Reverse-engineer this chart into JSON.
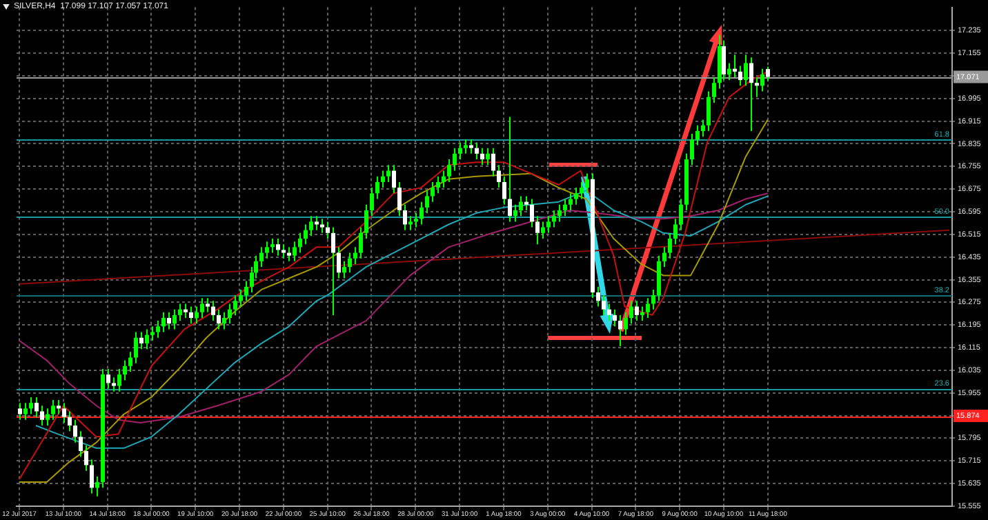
{
  "chart_data": {
    "type": "candlestick",
    "title": "SILVER,H4  17.099 17.107 17.057 17.071",
    "color": "#00ff00",
    "colors": [
      "#ffffff",
      "#00ff00",
      "#00ff00",
      "#ffffff",
      "#ffffff",
      "#00ff00",
      "#00ff00",
      "#ffffff",
      "#ffffff",
      "#ffffff",
      "#ffffff",
      "#ffffff",
      "#ffffff",
      "#ffffff",
      "#00ff00",
      "#00ff00",
      "#ffffff",
      "#ffffff",
      "#00ff00",
      "#00ff00",
      "#00ff00",
      "#00ff00",
      "#ffffff",
      "#00ff00",
      "#00ff00",
      "#00ff00",
      "#00ff00",
      "#ffffff",
      "#00ff00",
      "#00ff00",
      "#ffffff",
      "#ffffff",
      "#00ff00",
      "#00ff00",
      "#ffffff",
      "#ffffff",
      "#ffffff",
      "#00ff00",
      "#00ff00",
      "#00ff00",
      "#00ff00",
      "#00ff00",
      "#00ff00",
      "#00ff00",
      "#00ff00",
      "#00ff00",
      "#00ff00",
      "#ffffff",
      "#ffffff",
      "#ffffff",
      "#00ff00",
      "#00ff00",
      "#00ff00",
      "#00ff00",
      "#ffffff",
      "#ffffff",
      "#ffffff",
      "#ffffff",
      "#ffffff",
      "#00ff00",
      "#00ff00",
      "#00ff00",
      "#00ff00",
      "#00ff00",
      "#00ff00",
      "#00ff00",
      "#00ff00",
      "#00ff00",
      "#ffffff",
      "#ffffff",
      "#ffffff",
      "#00ff00",
      "#00ff00",
      "#00ff00",
      "#00ff00",
      "#00ff00",
      "#00ff00",
      "#00ff00",
      "#00ff00",
      "#00ff00",
      "#00ff00",
      "#00ff00",
      "#ffffff",
      "#ffffff",
      "#ffffff",
      "#00ff00",
      "#ffffff",
      "#ffffff",
      "#ffffff",
      "#ffffff",
      "#00ff00",
      "#00ff00",
      "#ffffff",
      "#ffffff",
      "#ffffff",
      "#00ff00",
      "#00ff00",
      "#00ff00",
      "#00ff00",
      "#00ff00",
      "#00ff00",
      "#00ff00",
      "#00ff00",
      "#00ff00",
      "#ffffff",
      "#ffffff",
      "#ffffff",
      "#ffffff",
      "#ffffff",
      "#ffffff",
      "#00ff00",
      "#00ff00",
      "#ffffff",
      "#00ff00",
      "#00ff00",
      "#00ff00",
      "#00ff00",
      "#00ff00",
      "#00ff00",
      "#00ff00",
      "#00ff00",
      "#00ff00",
      "#00ff00",
      "#00ff00",
      "#00ff00",
      "#00ff00",
      "#00ff00",
      "#00ff00",
      "#ffffff",
      "#00ff00",
      "#ffffff",
      "#ffffff",
      "#00ff00",
      "#ffffff",
      "#ffffff",
      "#00ff00",
      "#ffffff",
      null,
      null,
      null,
      null,
      null,
      null,
      null,
      null,
      null,
      null,
      null,
      null,
      null,
      null,
      null,
      null,
      null,
      null,
      null,
      null,
      null,
      null,
      null,
      null,
      null,
      null,
      null,
      null,
      null,
      null,
      null,
      null,
      null
    ],
    "categories": [
      "12 Jul 2017",
      null,
      null,
      null,
      null,
      null,
      null,
      null,
      "13 Jul 10:00",
      null,
      null,
      null,
      null,
      null,
      null,
      null,
      "14 Jul 18:00",
      null,
      null,
      null,
      null,
      null,
      null,
      null,
      "18 Jul 00:00",
      null,
      null,
      null,
      null,
      null,
      null,
      null,
      "19 Jul 10:00",
      null,
      null,
      null,
      null,
      null,
      null,
      null,
      "20 Jul 18:00",
      null,
      null,
      null,
      null,
      null,
      null,
      null,
      "22 Jul 00:00",
      null,
      null,
      null,
      null,
      null,
      null,
      null,
      "25 Jul 10:00",
      null,
      null,
      null,
      null,
      null,
      null,
      null,
      "26 Jul 18:00",
      null,
      null,
      null,
      null,
      null,
      null,
      null,
      "28 Jul 00:00",
      null,
      null,
      null,
      null,
      null,
      null,
      null,
      "31 Jul 10:00",
      null,
      null,
      null,
      null,
      null,
      null,
      null,
      "1 Aug 18:00",
      null,
      null,
      null,
      null,
      null,
      null,
      null,
      "3 Aug 00:00",
      null,
      null,
      null,
      null,
      null,
      null,
      null,
      "4 Aug 10:00",
      null,
      null,
      null,
      null,
      null,
      null,
      null,
      "7 Aug 18:00",
      null,
      null,
      null,
      null,
      null,
      null,
      null,
      "9 Aug 00:00",
      null,
      null,
      null,
      null,
      null,
      null,
      null,
      "10 Aug 10:00",
      null,
      null,
      null,
      null,
      null,
      null,
      null,
      "11 Aug 18:00",
      null,
      null,
      null,
      null,
      null,
      null,
      null,
      null,
      null,
      null,
      null,
      null,
      null,
      null,
      null,
      null,
      null,
      null,
      null,
      null,
      null,
      null,
      null,
      null,
      null,
      null,
      null,
      null,
      null,
      null,
      null,
      null,
      null
    ],
    "ohlc": [
      [
        15.9,
        15.92,
        15.86,
        15.88
      ],
      [
        15.88,
        15.92,
        15.86,
        15.9
      ],
      [
        15.9,
        15.94,
        15.88,
        15.92
      ],
      [
        15.92,
        15.94,
        15.87,
        15.89
      ],
      [
        15.89,
        15.91,
        15.84,
        15.86
      ],
      [
        15.86,
        15.9,
        15.84,
        15.88
      ],
      [
        15.88,
        15.93,
        15.86,
        15.91
      ],
      [
        15.91,
        15.93,
        15.88,
        15.9
      ],
      [
        15.9,
        15.92,
        15.85,
        15.87
      ],
      [
        15.87,
        15.89,
        15.82,
        15.84
      ],
      [
        15.84,
        15.86,
        15.78,
        15.8
      ],
      [
        15.8,
        15.82,
        15.73,
        15.75
      ],
      [
        15.75,
        15.77,
        15.68,
        15.7
      ],
      [
        15.7,
        15.72,
        15.6,
        15.62
      ],
      [
        15.62,
        15.66,
        15.59,
        15.64
      ],
      [
        15.64,
        16.04,
        15.62,
        16.02
      ],
      [
        16.02,
        16.04,
        15.97,
        15.99
      ],
      [
        15.99,
        16.01,
        15.96,
        15.98
      ],
      [
        15.98,
        16.04,
        15.96,
        16.02
      ],
      [
        16.02,
        16.07,
        16.0,
        16.05
      ],
      [
        16.05,
        16.1,
        16.03,
        16.08
      ],
      [
        16.08,
        16.17,
        16.06,
        16.15
      ],
      [
        16.15,
        16.17,
        16.11,
        16.13
      ],
      [
        16.13,
        16.18,
        16.11,
        16.16
      ],
      [
        16.16,
        16.19,
        16.14,
        16.17
      ],
      [
        16.17,
        16.21,
        16.15,
        16.19
      ],
      [
        16.19,
        16.24,
        16.17,
        16.22
      ],
      [
        16.22,
        16.24,
        16.18,
        16.2
      ],
      [
        16.2,
        16.25,
        16.18,
        16.23
      ],
      [
        16.23,
        16.27,
        16.21,
        16.25
      ],
      [
        16.25,
        16.27,
        16.22,
        16.24
      ],
      [
        16.24,
        16.26,
        16.2,
        16.22
      ],
      [
        16.22,
        16.26,
        16.2,
        16.24
      ],
      [
        16.24,
        16.29,
        16.22,
        16.27
      ],
      [
        16.27,
        16.29,
        16.24,
        16.26
      ],
      [
        16.26,
        16.28,
        16.21,
        16.23
      ],
      [
        16.23,
        16.25,
        16.18,
        16.2
      ],
      [
        16.2,
        16.24,
        16.18,
        16.22
      ],
      [
        16.22,
        16.27,
        16.2,
        16.25
      ],
      [
        16.25,
        16.3,
        16.23,
        16.28
      ],
      [
        16.28,
        16.32,
        16.26,
        16.3
      ],
      [
        16.3,
        16.35,
        16.28,
        16.33
      ],
      [
        16.33,
        16.4,
        16.31,
        16.38
      ],
      [
        16.38,
        16.44,
        16.36,
        16.42
      ],
      [
        16.42,
        16.47,
        16.4,
        16.45
      ],
      [
        16.45,
        16.49,
        16.43,
        16.47
      ],
      [
        16.47,
        16.5,
        16.45,
        16.48
      ],
      [
        16.48,
        16.5,
        16.44,
        16.46
      ],
      [
        16.46,
        16.48,
        16.43,
        16.45
      ],
      [
        16.45,
        16.47,
        16.42,
        16.44
      ],
      [
        16.44,
        16.49,
        16.42,
        16.47
      ],
      [
        16.47,
        16.52,
        16.45,
        16.5
      ],
      [
        16.5,
        16.55,
        16.48,
        16.53
      ],
      [
        16.53,
        16.58,
        16.51,
        16.56
      ],
      [
        16.56,
        16.58,
        16.53,
        16.55
      ],
      [
        16.55,
        16.57,
        16.52,
        16.54
      ],
      [
        16.54,
        16.56,
        16.5,
        16.52
      ],
      [
        16.52,
        16.54,
        16.23,
        16.45
      ],
      [
        16.45,
        16.47,
        16.36,
        16.38
      ],
      [
        16.38,
        16.42,
        16.36,
        16.4
      ],
      [
        16.4,
        16.45,
        16.38,
        16.43
      ],
      [
        16.43,
        16.47,
        16.41,
        16.45
      ],
      [
        16.45,
        16.54,
        16.43,
        16.52
      ],
      [
        16.52,
        16.62,
        16.5,
        16.6
      ],
      [
        16.6,
        16.68,
        16.58,
        16.66
      ],
      [
        16.66,
        16.72,
        16.64,
        16.7
      ],
      [
        16.7,
        16.74,
        16.68,
        16.72
      ],
      [
        16.72,
        16.76,
        16.7,
        16.74
      ],
      [
        16.74,
        16.76,
        16.66,
        16.68
      ],
      [
        16.68,
        16.7,
        16.58,
        16.6
      ],
      [
        16.6,
        16.62,
        16.53,
        16.55
      ],
      [
        16.55,
        16.58,
        16.53,
        16.56
      ],
      [
        16.56,
        16.59,
        16.54,
        16.57
      ],
      [
        16.57,
        16.63,
        16.55,
        16.61
      ],
      [
        16.61,
        16.67,
        16.59,
        16.65
      ],
      [
        16.65,
        16.7,
        16.63,
        16.68
      ],
      [
        16.68,
        16.72,
        16.66,
        16.7
      ],
      [
        16.7,
        16.74,
        16.68,
        16.72
      ],
      [
        16.72,
        16.78,
        16.7,
        16.76
      ],
      [
        16.76,
        16.82,
        16.74,
        16.8
      ],
      [
        16.8,
        16.84,
        16.78,
        16.82
      ],
      [
        16.82,
        16.85,
        16.8,
        16.83
      ],
      [
        16.83,
        16.85,
        16.8,
        16.82
      ],
      [
        16.82,
        16.84,
        16.78,
        16.8
      ],
      [
        16.8,
        16.82,
        16.76,
        16.78
      ],
      [
        16.78,
        16.82,
        16.76,
        16.8
      ],
      [
        16.8,
        16.82,
        16.72,
        16.74
      ],
      [
        16.74,
        16.76,
        16.68,
        16.7
      ],
      [
        16.7,
        16.72,
        16.62,
        16.64
      ],
      [
        16.64,
        16.93,
        16.56,
        16.58
      ],
      [
        16.58,
        16.62,
        16.56,
        16.6
      ],
      [
        16.6,
        16.65,
        16.58,
        16.63
      ],
      [
        16.63,
        16.65,
        16.6,
        16.62
      ],
      [
        16.62,
        16.64,
        16.54,
        16.56
      ],
      [
        16.56,
        16.58,
        16.48,
        16.52
      ],
      [
        16.52,
        16.56,
        16.5,
        16.54
      ],
      [
        16.54,
        16.58,
        16.52,
        16.56
      ],
      [
        16.56,
        16.6,
        16.54,
        16.58
      ],
      [
        16.58,
        16.62,
        16.56,
        16.6
      ],
      [
        16.6,
        16.64,
        16.58,
        16.62
      ],
      [
        16.62,
        16.66,
        16.6,
        16.64
      ],
      [
        16.64,
        16.68,
        16.62,
        16.66
      ],
      [
        16.66,
        16.7,
        16.64,
        16.68
      ],
      [
        16.68,
        16.73,
        16.66,
        16.71
      ],
      [
        16.71,
        16.73,
        16.29,
        16.31
      ],
      [
        16.31,
        16.33,
        16.26,
        16.28
      ],
      [
        16.28,
        16.3,
        16.23,
        16.25
      ],
      [
        16.25,
        16.27,
        16.21,
        16.23
      ],
      [
        16.23,
        16.25,
        16.19,
        16.21
      ],
      [
        16.21,
        16.23,
        16.12,
        16.18
      ],
      [
        16.18,
        16.24,
        16.16,
        16.22
      ],
      [
        16.22,
        16.28,
        16.2,
        16.26
      ],
      [
        16.26,
        16.28,
        16.21,
        16.23
      ],
      [
        16.23,
        16.26,
        16.21,
        16.24
      ],
      [
        16.24,
        16.29,
        16.22,
        16.27
      ],
      [
        16.27,
        16.32,
        16.25,
        16.3
      ],
      [
        16.3,
        16.44,
        16.28,
        16.42
      ],
      [
        16.42,
        16.47,
        16.4,
        16.45
      ],
      [
        16.45,
        16.52,
        16.43,
        16.5
      ],
      [
        16.5,
        16.57,
        16.48,
        16.55
      ],
      [
        16.55,
        16.64,
        16.53,
        16.62
      ],
      [
        16.62,
        16.8,
        16.6,
        16.78
      ],
      [
        16.78,
        16.87,
        16.76,
        16.85
      ],
      [
        16.85,
        16.9,
        16.83,
        16.88
      ],
      [
        16.88,
        16.92,
        16.86,
        16.9
      ],
      [
        16.9,
        17.02,
        16.88,
        17.0
      ],
      [
        17.0,
        17.07,
        16.98,
        17.05
      ],
      [
        17.05,
        17.22,
        17.03,
        17.18
      ],
      [
        17.18,
        17.2,
        17.06,
        17.08
      ],
      [
        17.08,
        17.12,
        17.06,
        17.1
      ],
      [
        17.1,
        17.15,
        17.07,
        17.09
      ],
      [
        17.09,
        17.11,
        17.04,
        17.06
      ],
      [
        17.06,
        17.15,
        17.04,
        17.12
      ],
      [
        17.12,
        17.14,
        16.88,
        17.05
      ],
      [
        17.05,
        17.07,
        17.0,
        17.04
      ],
      [
        17.04,
        17.1,
        17.02,
        17.08
      ],
      [
        17.099,
        17.107,
        17.057,
        17.071
      ],
      null,
      null,
      null,
      null,
      null,
      null,
      null,
      null,
      null,
      null,
      null,
      null,
      null,
      null,
      null,
      null,
      null,
      null,
      null,
      null,
      null,
      null,
      null,
      null,
      null,
      null,
      null,
      null,
      null,
      null,
      null,
      null,
      null
    ],
    "series": [
      {
        "type": "line",
        "color": "#c81010",
        "values": [
          15.65,
          null,
          null,
          null,
          null,
          null,
          null,
          null,
          15.91,
          null,
          null,
          null,
          null,
          null,
          15.8,
          null,
          null,
          null,
          15.81,
          null,
          null,
          null,
          null,
          null,
          16.05,
          null,
          null,
          null,
          null,
          null,
          16.18,
          null,
          null,
          null,
          null,
          null,
          16.25,
          null,
          null,
          null,
          null,
          16.32,
          null,
          null,
          null,
          null,
          null,
          null,
          null,
          16.4,
          null,
          null,
          null,
          null,
          16.47,
          null,
          null,
          null,
          16.47,
          null,
          null,
          null,
          null,
          16.56,
          null,
          null,
          null,
          null,
          16.66,
          null,
          null,
          null,
          null,
          16.68,
          null,
          null,
          null,
          null,
          16.76,
          null,
          null,
          null,
          null,
          16.77,
          null,
          null,
          null,
          null,
          16.77,
          null,
          null,
          null,
          null,
          16.73,
          null,
          null,
          null,
          null,
          16.69,
          null,
          null,
          null,
          16.74,
          null,
          null,
          null,
          null,
          null,
          16.44,
          null,
          16.26,
          null,
          null,
          null,
          null,
          16.23,
          null,
          16.29,
          null,
          null,
          null,
          16.52,
          null,
          null,
          null,
          16.84,
          null,
          null,
          null,
          17.0,
          null,
          null,
          null,
          17.06,
          null,
          null,
          17.09,
          null,
          null,
          null,
          null,
          null,
          null,
          null,
          null,
          null,
          null,
          null,
          null,
          null,
          null,
          null,
          null,
          null,
          null,
          null,
          null,
          null,
          null,
          null,
          null,
          null,
          null,
          null,
          null,
          null,
          null,
          null,
          null,
          null
        ]
      },
      {
        "type": "line",
        "color": "#a89a00",
        "values": [
          15.64,
          null,
          null,
          null,
          null,
          15.64,
          null,
          null,
          null,
          15.71,
          null,
          null,
          null,
          null,
          15.78,
          null,
          null,
          null,
          null,
          15.88,
          null,
          null,
          null,
          null,
          15.94,
          null,
          null,
          null,
          null,
          16.04,
          null,
          null,
          null,
          null,
          16.15,
          null,
          null,
          null,
          null,
          16.24,
          null,
          null,
          null,
          null,
          16.32,
          null,
          null,
          null,
          null,
          16.36,
          null,
          null,
          null,
          null,
          16.4,
          null,
          null,
          null,
          16.45,
          null,
          null,
          null,
          null,
          16.53,
          null,
          null,
          null,
          null,
          16.6,
          null,
          null,
          null,
          null,
          16.66,
          null,
          null,
          null,
          null,
          16.71,
          null,
          null,
          null,
          null,
          16.72,
          null,
          null,
          null,
          null,
          null,
          null,
          null,
          null,
          null,
          16.73,
          null,
          null,
          null,
          null,
          16.68,
          null,
          null,
          null,
          null,
          16.64,
          null,
          null,
          null,
          null,
          16.5,
          null,
          null,
          null,
          null,
          16.41,
          null,
          null,
          null,
          16.37,
          null,
          null,
          null,
          null,
          16.37,
          null,
          null,
          null,
          null,
          16.55,
          null,
          null,
          null,
          null,
          16.79,
          null,
          null,
          null,
          16.92,
          null,
          null,
          null,
          null,
          null,
          null,
          null,
          null,
          null,
          null,
          null,
          null,
          null,
          null,
          null,
          null,
          null,
          null,
          null,
          null,
          null,
          null,
          null,
          null,
          null,
          null,
          null,
          null,
          null,
          null,
          null,
          null,
          null
        ]
      },
      {
        "type": "line",
        "color": "#1fa8b8",
        "values": [
          null,
          null,
          null,
          15.84,
          null,
          null,
          null,
          15.81,
          null,
          null,
          null,
          null,
          null,
          null,
          15.76,
          null,
          null,
          null,
          null,
          15.76,
          null,
          null,
          null,
          null,
          15.8,
          null,
          null,
          null,
          null,
          15.88,
          null,
          null,
          null,
          null,
          15.97,
          null,
          null,
          null,
          null,
          16.06,
          null,
          null,
          null,
          null,
          16.13,
          null,
          null,
          null,
          null,
          16.19,
          null,
          null,
          null,
          null,
          16.28,
          null,
          16.3,
          null,
          null,
          null,
          null,
          null,
          null,
          16.4,
          null,
          null,
          null,
          null,
          16.45,
          null,
          null,
          null,
          null,
          16.5,
          null,
          null,
          null,
          null,
          16.55,
          null,
          null,
          null,
          null,
          16.59,
          null,
          null,
          null,
          null,
          16.61,
          null,
          null,
          null,
          null,
          16.62,
          null,
          null,
          null,
          null,
          16.63,
          null,
          null,
          null,
          null,
          16.67,
          null,
          null,
          null,
          null,
          16.6,
          null,
          null,
          null,
          null,
          16.56,
          null,
          null,
          null,
          16.52,
          null,
          null,
          null,
          null,
          16.51,
          null,
          null,
          null,
          null,
          16.56,
          null,
          null,
          null,
          null,
          16.62,
          null,
          null,
          null,
          16.65,
          null,
          null,
          null,
          null,
          null,
          null,
          null,
          null,
          null,
          null,
          null,
          null,
          null,
          null,
          null,
          null,
          null,
          null,
          null,
          null,
          null,
          null,
          null,
          null,
          null,
          null,
          null,
          null,
          null,
          null,
          null,
          null,
          null
        ]
      },
      {
        "type": "line",
        "color": "#a0206a",
        "values": [
          16.14,
          null,
          null,
          null,
          null,
          16.07,
          null,
          null,
          null,
          15.99,
          null,
          null,
          null,
          null,
          15.91,
          null,
          null,
          null,
          15.86,
          null,
          null,
          null,
          15.85,
          null,
          null,
          null,
          null,
          null,
          null,
          15.87,
          null,
          null,
          null,
          null,
          null,
          null,
          15.91,
          null,
          null,
          null,
          null,
          null,
          null,
          null,
          15.96,
          null,
          null,
          null,
          null,
          16.02,
          null,
          null,
          null,
          null,
          16.12,
          null,
          16.14,
          null,
          null,
          null,
          null,
          null,
          null,
          16.21,
          null,
          null,
          null,
          null,
          null,
          null,
          null,
          16.37,
          null,
          null,
          null,
          null,
          null,
          null,
          16.47,
          null,
          null,
          null,
          null,
          null,
          null,
          null,
          16.52,
          null,
          null,
          null,
          null,
          null,
          null,
          16.56,
          null,
          null,
          null,
          null,
          null,
          null,
          16.6,
          null,
          null,
          null,
          null,
          16.59,
          null,
          null,
          null,
          null,
          null,
          null,
          null,
          16.57,
          null,
          null,
          null,
          16.57,
          null,
          null,
          null,
          null,
          16.58,
          null,
          null,
          null,
          null,
          16.6,
          null,
          null,
          null,
          null,
          16.64,
          null,
          null,
          null,
          16.66,
          null,
          null,
          null,
          null,
          null,
          null,
          null,
          null,
          null,
          null,
          null,
          null,
          null,
          null,
          null,
          null,
          null,
          null,
          null,
          null,
          null,
          null,
          null,
          null,
          null,
          null,
          null,
          null,
          null,
          null,
          null,
          null,
          null
        ]
      },
      {
        "type": "line",
        "color": "#8b0a0a",
        "values": [
          16.34,
          null,
          null,
          null,
          null,
          null,
          null,
          null,
          null,
          null,
          null,
          null,
          null,
          null,
          null,
          null,
          null,
          null,
          null,
          null,
          null,
          null,
          null,
          null,
          null,
          null,
          null,
          null,
          null,
          null,
          null,
          null,
          null,
          null,
          null,
          null,
          null,
          null,
          null,
          null,
          null,
          null,
          null,
          null,
          null,
          null,
          null,
          null,
          null,
          null,
          null,
          null,
          null,
          null,
          null,
          null,
          null,
          null,
          null,
          null,
          null,
          null,
          null,
          null,
          null,
          null,
          null,
          null,
          null,
          null,
          null,
          null,
          null,
          null,
          null,
          null,
          null,
          null,
          null,
          null,
          null,
          null,
          null,
          null,
          null,
          null,
          null,
          null,
          null,
          null,
          null,
          null,
          null,
          null,
          null,
          null,
          null,
          null,
          null,
          null,
          null,
          null,
          null,
          null,
          null,
          null,
          null,
          null,
          null,
          null,
          null,
          null,
          null,
          null,
          null,
          null,
          null,
          null,
          null,
          null,
          null,
          null,
          null,
          null,
          null,
          null,
          null,
          null,
          null,
          null,
          null,
          null,
          null,
          null,
          null,
          null,
          null,
          null,
          null,
          null,
          null,
          null,
          null,
          null,
          null,
          null,
          null,
          null,
          null,
          null,
          null,
          null,
          null,
          null,
          null,
          null,
          null,
          null,
          null,
          null,
          null,
          null,
          null,
          null,
          null,
          null,
          null,
          null,
          null,
          16.53
        ]
      }
    ],
    "ylim": [
      15.555,
      17.317
    ],
    "yticks": [
      17.235,
      17.155,
      {
        "value": 17.075,
        "label": null
      },
      16.995,
      16.915,
      16.835,
      16.755,
      16.675,
      16.595,
      16.515,
      16.435,
      16.355,
      16.275,
      16.195,
      16.115,
      16.035,
      15.955,
      {
        "value": 15.875,
        "label": null
      },
      15.795,
      15.715,
      15.635,
      15.555
    ],
    "grid": true,
    "ref_lines": [
      {
        "axis": "y",
        "value": 17.071,
        "label": "17.071",
        "color": "#9a9a9a"
      },
      {
        "axis": "y",
        "value": 16.85,
        "color": "#1a9a9a"
      },
      {
        "axis": "y",
        "value": 16.577,
        "color": "#1a9a9a"
      },
      {
        "axis": "y",
        "value": 16.3,
        "color": "#116e6e"
      },
      {
        "axis": "y",
        "value": 15.97,
        "color": "#1a9a9a"
      },
      {
        "axis": "y",
        "value": 15.874,
        "label": "15.874",
        "color": "#ff2020"
      }
    ],
    "annotations": [
      {
        "text": "61.8",
        "y": 16.85
      },
      {
        "text": "50.0",
        "y": 16.577
      },
      {
        "text": "38.2",
        "y": 16.3
      },
      {
        "text": "23.6",
        "y": 15.97
      }
    ]
  }
}
